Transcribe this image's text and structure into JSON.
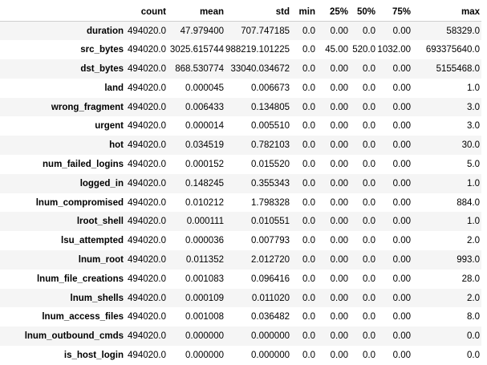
{
  "table": {
    "columns": [
      "",
      "count",
      "mean",
      "std",
      "min",
      "25%",
      "50%",
      "75%",
      "max"
    ],
    "rows": [
      {
        "label": "duration",
        "values": [
          "494020.0",
          "47.979400",
          "707.747185",
          "0.0",
          "0.00",
          "0.0",
          "0.00",
          "58329.0"
        ]
      },
      {
        "label": "src_bytes",
        "values": [
          "494020.0",
          "3025.615744",
          "988219.101225",
          "0.0",
          "45.00",
          "520.0",
          "1032.00",
          "693375640.0"
        ]
      },
      {
        "label": "dst_bytes",
        "values": [
          "494020.0",
          "868.530774",
          "33040.034672",
          "0.0",
          "0.00",
          "0.0",
          "0.00",
          "5155468.0"
        ]
      },
      {
        "label": "land",
        "values": [
          "494020.0",
          "0.000045",
          "0.006673",
          "0.0",
          "0.00",
          "0.0",
          "0.00",
          "1.0"
        ]
      },
      {
        "label": "wrong_fragment",
        "values": [
          "494020.0",
          "0.006433",
          "0.134805",
          "0.0",
          "0.00",
          "0.0",
          "0.00",
          "3.0"
        ]
      },
      {
        "label": "urgent",
        "values": [
          "494020.0",
          "0.000014",
          "0.005510",
          "0.0",
          "0.00",
          "0.0",
          "0.00",
          "3.0"
        ]
      },
      {
        "label": "hot",
        "values": [
          "494020.0",
          "0.034519",
          "0.782103",
          "0.0",
          "0.00",
          "0.0",
          "0.00",
          "30.0"
        ]
      },
      {
        "label": "num_failed_logins",
        "values": [
          "494020.0",
          "0.000152",
          "0.015520",
          "0.0",
          "0.00",
          "0.0",
          "0.00",
          "5.0"
        ]
      },
      {
        "label": "logged_in",
        "values": [
          "494020.0",
          "0.148245",
          "0.355343",
          "0.0",
          "0.00",
          "0.0",
          "0.00",
          "1.0"
        ]
      },
      {
        "label": "lnum_compromised",
        "values": [
          "494020.0",
          "0.010212",
          "1.798328",
          "0.0",
          "0.00",
          "0.0",
          "0.00",
          "884.0"
        ]
      },
      {
        "label": "lroot_shell",
        "values": [
          "494020.0",
          "0.000111",
          "0.010551",
          "0.0",
          "0.00",
          "0.0",
          "0.00",
          "1.0"
        ]
      },
      {
        "label": "lsu_attempted",
        "values": [
          "494020.0",
          "0.000036",
          "0.007793",
          "0.0",
          "0.00",
          "0.0",
          "0.00",
          "2.0"
        ]
      },
      {
        "label": "lnum_root",
        "values": [
          "494020.0",
          "0.011352",
          "2.012720",
          "0.0",
          "0.00",
          "0.0",
          "0.00",
          "993.0"
        ]
      },
      {
        "label": "lnum_file_creations",
        "values": [
          "494020.0",
          "0.001083",
          "0.096416",
          "0.0",
          "0.00",
          "0.0",
          "0.00",
          "28.0"
        ]
      },
      {
        "label": "lnum_shells",
        "values": [
          "494020.0",
          "0.000109",
          "0.011020",
          "0.0",
          "0.00",
          "0.0",
          "0.00",
          "2.0"
        ]
      },
      {
        "label": "lnum_access_files",
        "values": [
          "494020.0",
          "0.001008",
          "0.036482",
          "0.0",
          "0.00",
          "0.0",
          "0.00",
          "8.0"
        ]
      },
      {
        "label": "lnum_outbound_cmds",
        "values": [
          "494020.0",
          "0.000000",
          "0.000000",
          "0.0",
          "0.00",
          "0.0",
          "0.00",
          "0.0"
        ]
      },
      {
        "label": "is_host_login",
        "values": [
          "494020.0",
          "0.000000",
          "0.000000",
          "0.0",
          "0.00",
          "0.0",
          "0.00",
          "0.0"
        ]
      }
    ]
  }
}
